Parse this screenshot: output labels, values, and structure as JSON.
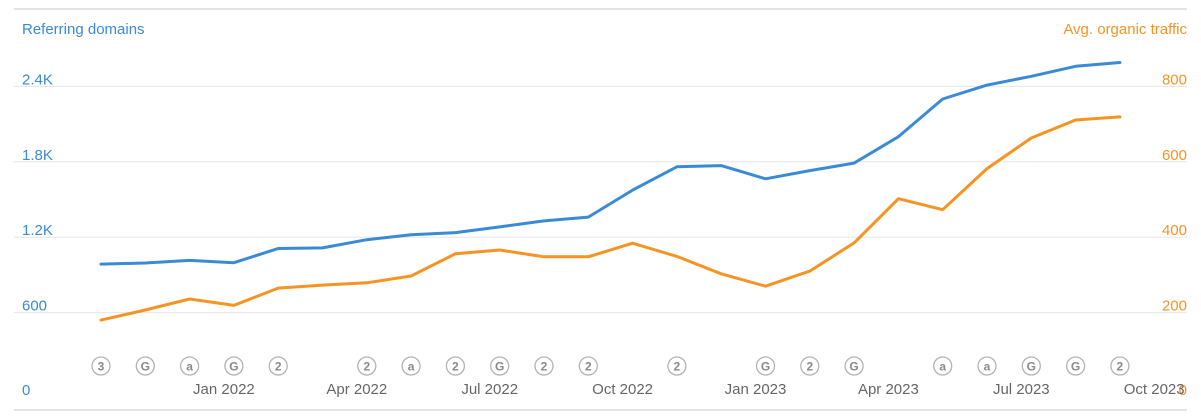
{
  "chart_data": {
    "type": "line",
    "title": "",
    "x": [
      "2021-10",
      "2021-11",
      "2021-12",
      "2022-01",
      "2022-02",
      "2022-03",
      "2022-04",
      "2022-05",
      "2022-06",
      "2022-07",
      "2022-08",
      "2022-09",
      "2022-10",
      "2022-11",
      "2022-12",
      "2023-01",
      "2023-02",
      "2023-03",
      "2023-04",
      "2023-05",
      "2023-06",
      "2023-07",
      "2023-08",
      "2023-09",
      "2023-10",
      "2023-11"
    ],
    "x_tick_labels": [
      "Jan 2022",
      "Apr 2022",
      "Jul 2022",
      "Oct 2022",
      "Jan 2023",
      "Apr 2023",
      "Jul 2023",
      "Oct 2023"
    ],
    "ylabel_left": "Referring domains",
    "ylabel_right": "Avg. organic traffic",
    "yticks_left": [
      "0",
      "600",
      "1.2K",
      "1.8K",
      "2.4K"
    ],
    "yticks_right": [
      "0",
      "200",
      "400",
      "600",
      "800"
    ],
    "ylim_left": [
      0,
      3000
    ],
    "ylim_right": [
      0,
      1000
    ],
    "grid": true,
    "series": [
      {
        "name": "Referring domains",
        "axis": "left",
        "color": "#3b8ad6",
        "values": [
          986,
          995,
          1015,
          997,
          1110,
          1115,
          1180,
          1220,
          1237,
          1282,
          1330,
          1360,
          1575,
          1760,
          1770,
          1665,
          1730,
          1790,
          2000,
          2300,
          2410,
          2480,
          2560,
          2590,
          null,
          null
        ]
      },
      {
        "name": "Avg. organic traffic",
        "axis": "right",
        "color": "#f59422",
        "values": [
          180,
          207,
          236,
          219,
          265,
          273,
          279,
          297,
          356,
          366,
          348,
          348,
          384,
          349,
          303,
          270,
          310,
          385,
          502,
          473,
          582,
          663,
          711,
          719,
          null,
          null
        ]
      }
    ],
    "annotation_markers": [
      {
        "x": "2021-10",
        "label": "3"
      },
      {
        "x": "2021-11",
        "label": "G"
      },
      {
        "x": "2021-12",
        "label": "a"
      },
      {
        "x": "2022-01",
        "label": "G"
      },
      {
        "x": "2022-02",
        "label": "2"
      },
      {
        "x": "2022-04",
        "label": "2"
      },
      {
        "x": "2022-05",
        "label": "a"
      },
      {
        "x": "2022-06",
        "label": "2"
      },
      {
        "x": "2022-07",
        "label": "G"
      },
      {
        "x": "2022-08",
        "label": "2"
      },
      {
        "x": "2022-09",
        "label": "2"
      },
      {
        "x": "2022-11",
        "label": "2"
      },
      {
        "x": "2023-01",
        "label": "G"
      },
      {
        "x": "2023-02",
        "label": "2"
      },
      {
        "x": "2023-03",
        "label": "G"
      },
      {
        "x": "2023-05",
        "label": "a"
      },
      {
        "x": "2023-06",
        "label": "a"
      },
      {
        "x": "2023-07",
        "label": "G"
      },
      {
        "x": "2023-08",
        "label": "G"
      },
      {
        "x": "2023-09",
        "label": "2"
      }
    ],
    "colors": {
      "left_axis": "#3b8ad6",
      "right_axis": "#f59422",
      "grid": "#e6e6e6",
      "marker_stroke": "#b3b3b3",
      "marker_text": "#8a8a8a",
      "tick_text": "#666666"
    }
  }
}
